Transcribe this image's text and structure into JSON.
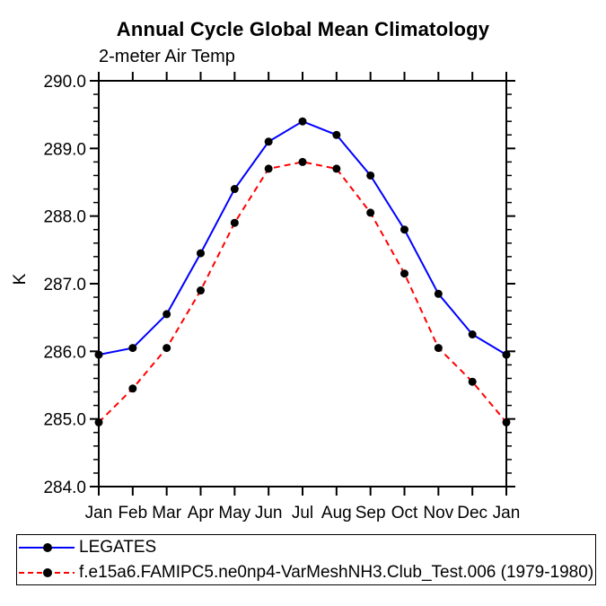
{
  "chart": {
    "title": "Annual Cycle Global Mean Climatology",
    "subtitle": "2-meter Air Temp",
    "ylabel": "K"
  },
  "legend": {
    "items": [
      {
        "label": "LEGATES",
        "color": "#0000ff",
        "line_style": "solid",
        "marker": "black-dot"
      },
      {
        "label": "f.e15a6.FAMIPC5.ne0np4-VarMeshNH3.Club_Test.006 (1979-1980)",
        "color": "#ff0000",
        "line_style": "dashed",
        "marker": "black-dot"
      }
    ]
  },
  "chart_data": {
    "type": "line",
    "title": "Annual Cycle Global Mean Climatology",
    "subtitle": "2-meter Air Temp",
    "xlabel": "",
    "ylabel": "K",
    "categories": [
      "Jan",
      "Feb",
      "Mar",
      "Apr",
      "May",
      "Jun",
      "Jul",
      "Aug",
      "Sep",
      "Oct",
      "Nov",
      "Dec",
      "Jan"
    ],
    "series": [
      {
        "name": "LEGATES",
        "color": "#0000ff",
        "line_style": "solid",
        "marker_color": "#000000",
        "values": [
          285.95,
          286.05,
          286.55,
          287.45,
          288.4,
          289.1,
          289.4,
          289.2,
          288.6,
          287.8,
          286.85,
          286.25,
          285.95
        ]
      },
      {
        "name": "f.e15a6.FAMIPC5.ne0np4-VarMeshNH3.Club_Test.006 (1979-1980)",
        "color": "#ff0000",
        "line_style": "dashed",
        "marker_color": "#000000",
        "values": [
          284.95,
          285.45,
          286.05,
          286.9,
          287.9,
          288.7,
          288.8,
          288.7,
          288.05,
          287.15,
          286.05,
          285.55,
          284.95
        ]
      }
    ],
    "ylim": [
      284.0,
      290.0
    ],
    "ytick_interval": 1.0,
    "ytick_labels": [
      "284.0",
      "285.0",
      "286.0",
      "287.0",
      "288.0",
      "289.0",
      "290.0"
    ],
    "y_minor_tick_interval": 0.2,
    "grid": false,
    "frame": true,
    "ticks_point_outward": true,
    "legend_position": "bottom-left",
    "axis_color": "#000000"
  }
}
